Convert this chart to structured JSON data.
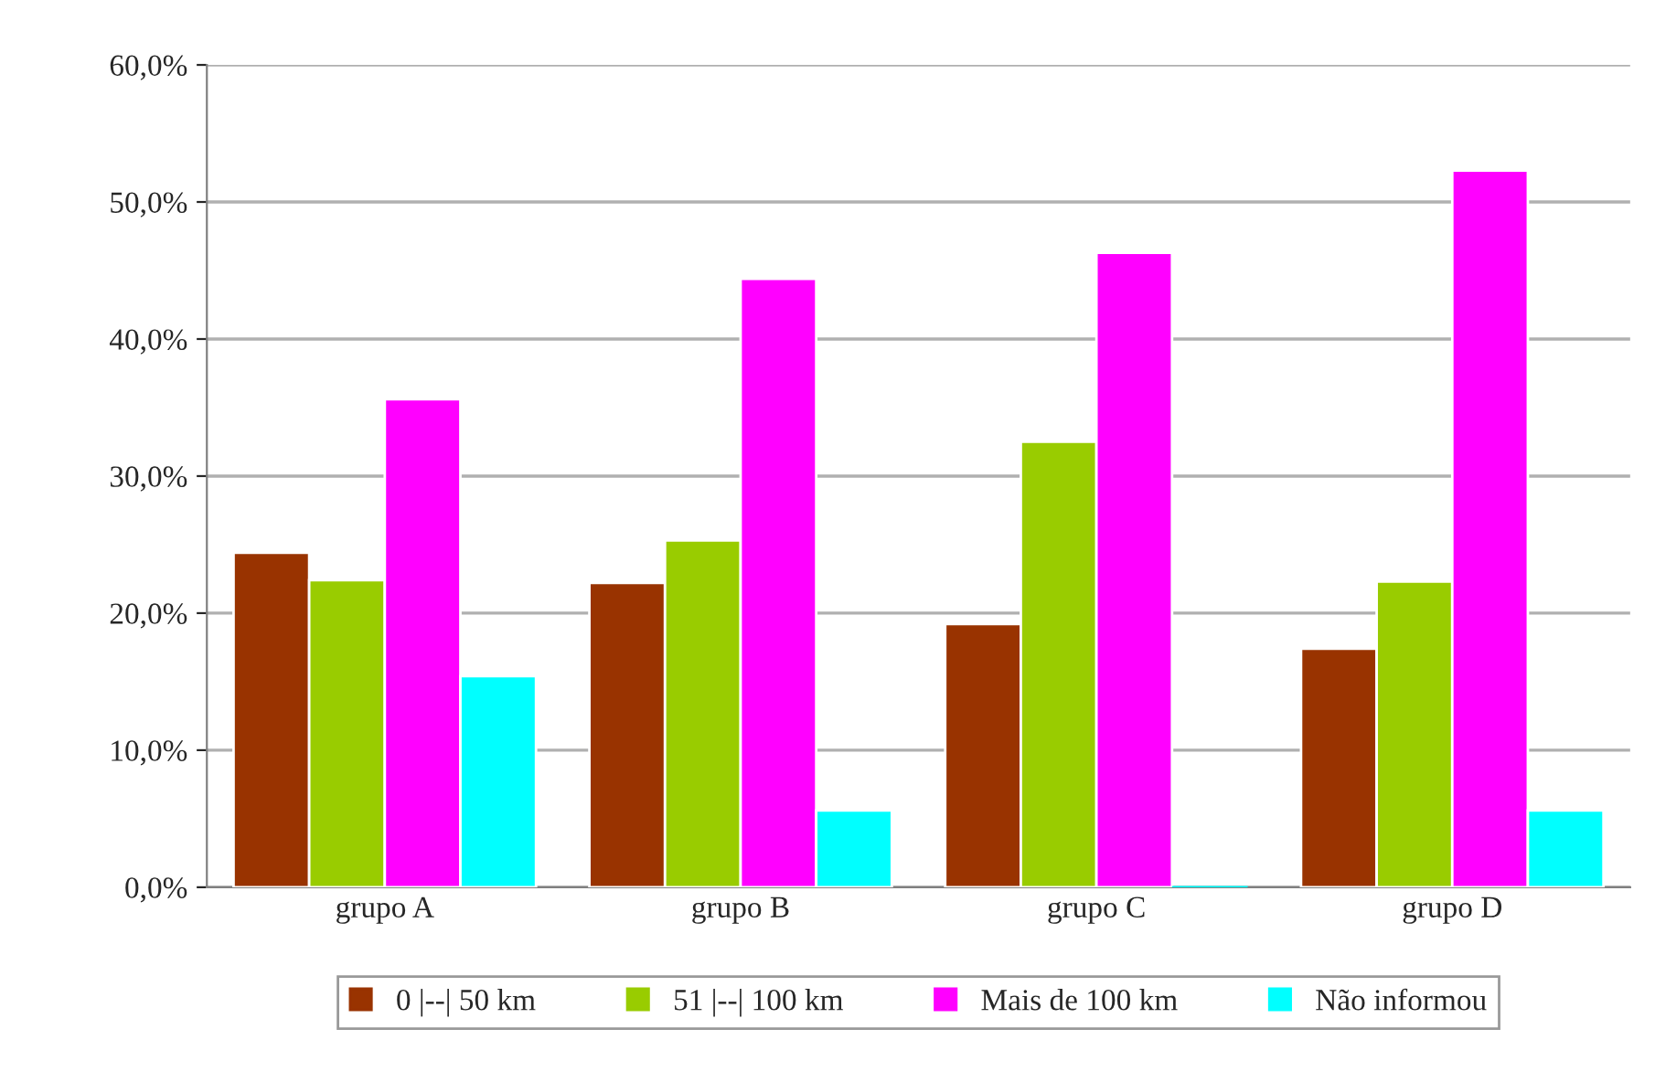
{
  "chart_data": {
    "type": "bar",
    "categories": [
      "grupo A",
      "grupo B",
      "grupo C",
      "grupo D"
    ],
    "series": [
      {
        "name": "0 |--| 50 km",
        "color": "#993300",
        "values": [
          24.4,
          22.2,
          19.2,
          17.4
        ]
      },
      {
        "name": "51 |--| 100 km",
        "color": "#99cc00",
        "values": [
          22.4,
          25.3,
          32.5,
          22.3
        ]
      },
      {
        "name": "Mais de 100 km",
        "color": "#ff00ff",
        "values": [
          35.6,
          44.4,
          46.3,
          52.3
        ]
      },
      {
        "name": "Não informou",
        "color": "#00ffff",
        "values": [
          15.4,
          5.6,
          0,
          5.6
        ]
      }
    ],
    "ylim": [
      0,
      60
    ],
    "yticks": [
      {
        "value": 0,
        "label": "0,0%"
      },
      {
        "value": 10,
        "label": "10,0%"
      },
      {
        "value": 20,
        "label": "20,0%"
      },
      {
        "value": 30,
        "label": "30,0%"
      },
      {
        "value": 40,
        "label": "40,0%"
      },
      {
        "value": 50,
        "label": "50,0%"
      },
      {
        "value": 60,
        "label": "60,0%"
      }
    ],
    "grid": "y",
    "legend": "bottom"
  }
}
